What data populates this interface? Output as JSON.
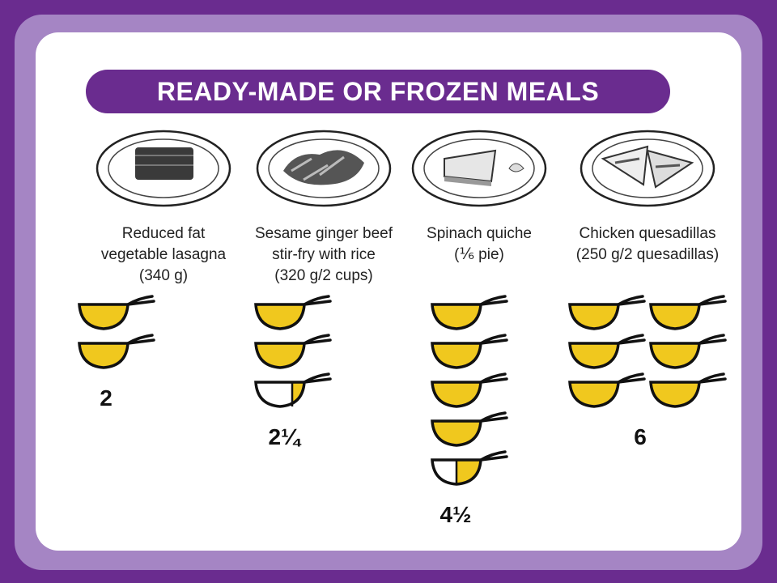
{
  "title": "READY-MADE OR FROZEN MEALS",
  "colors": {
    "purple": "#6a2c8f",
    "light_purple": "#a585c4",
    "spoon_fill": "#f0c81e"
  },
  "meals": [
    {
      "label_lines": [
        "Reduced fat",
        "vegetable lasagna",
        "(340 g)"
      ],
      "spoon_fills": [
        1,
        1
      ],
      "amount": "2",
      "plate_icon": "lasagna-plate-icon"
    },
    {
      "label_lines": [
        "Sesame ginger beef",
        "stir-fry with rice",
        "(320 g/2 cups)"
      ],
      "spoon_fills": [
        1,
        1,
        0.25
      ],
      "amount": "2¼",
      "plate_icon": "stir-fry-plate-icon"
    },
    {
      "label_lines": [
        "Spinach quiche",
        "(⅙ pie)"
      ],
      "spoon_fills": [
        1,
        1,
        1,
        1,
        0.5
      ],
      "amount": "4½",
      "plate_icon": "quiche-plate-icon"
    },
    {
      "label_lines": [
        "Chicken quesadillas",
        "(250 g/2 quesadillas)"
      ],
      "spoon_fills": [
        1,
        1,
        1,
        1,
        1,
        1
      ],
      "amount": "6",
      "plate_icon": "quesadilla-plate-icon"
    }
  ]
}
